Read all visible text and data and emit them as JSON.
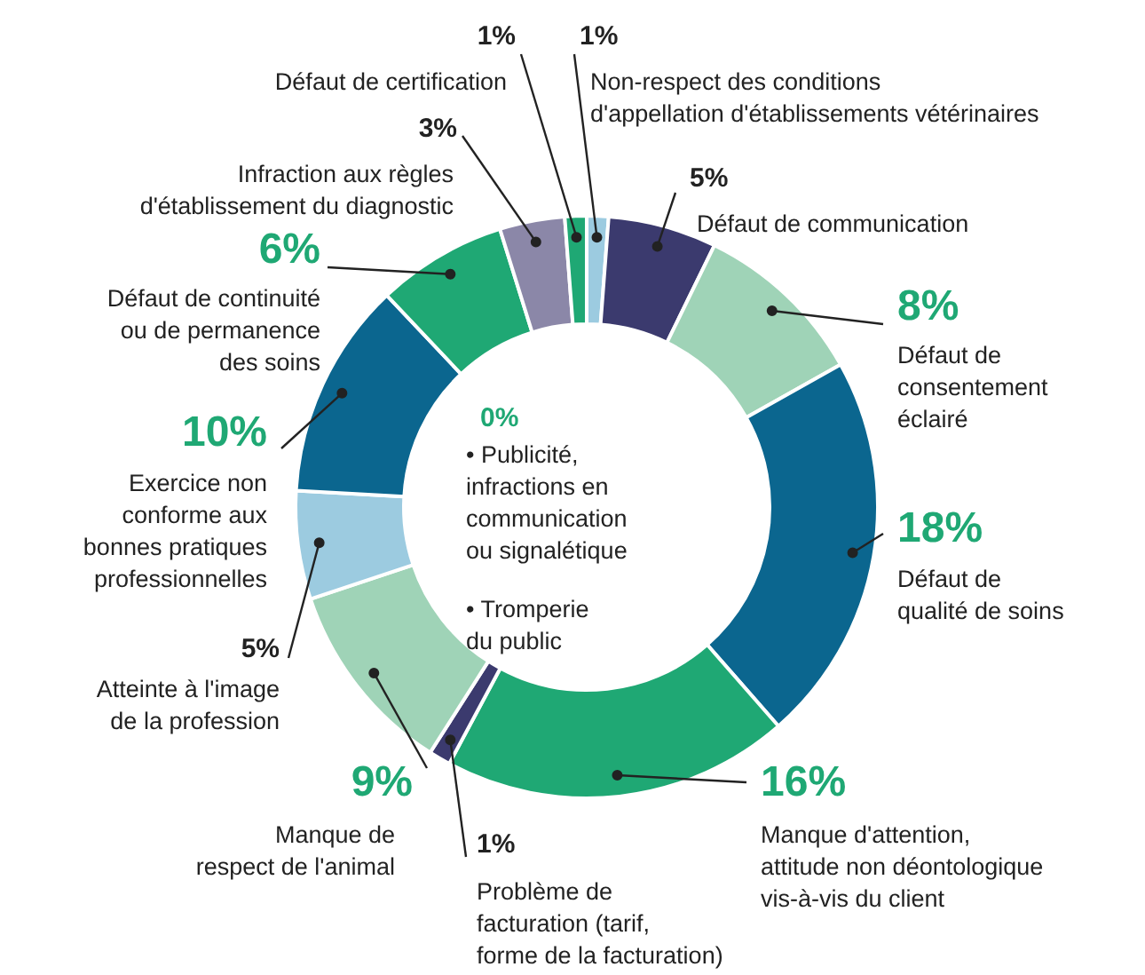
{
  "chart_data": {
    "type": "donut",
    "categories": [
      "Non-respect des conditions\nd'appellation d'établissements vétérinaires",
      "Défaut de communication",
      "Défaut de\nconsentement\néclairé",
      "Défaut de\nqualité de soins",
      "Manque d'attention,\nattitude non déontologique\nvis-à-vis du client",
      "Problème de\nfacturation (tarif,\nforme de la facturation)",
      "Manque de\nrespect de l'animal",
      "Atteinte à l'image\nde la profession",
      "Exercice non\nconforme aux\nbonnes pratiques\nprofessionnelles",
      "Défaut de continuité\nou de permanence\ndes soins",
      "Infraction aux règles\nd'établissement du diagnostic",
      "Défaut de certification"
    ],
    "values": [
      1,
      5,
      8,
      18,
      16,
      1,
      9,
      5,
      10,
      6,
      3,
      1
    ],
    "value_labels": [
      "1%",
      "5%",
      "8%",
      "18%",
      "16%",
      "1%",
      "9%",
      "5%",
      "10%",
      "6%",
      "3%",
      "1%"
    ],
    "colors": [
      "#9ccbe0",
      "#3b3a6e",
      "#9fd3b7",
      "#0b668f",
      "#1fa874",
      "#3b3a6e",
      "#9fd3b7",
      "#9ccbe0",
      "#0b668f",
      "#1fa874",
      "#8b87a8",
      "#1fa874"
    ],
    "annotations": [
      "0%",
      "• Publicité,\n   infractions en\n   communication\n   ou signalétique",
      "• Tromperie\n   du public"
    ]
  }
}
